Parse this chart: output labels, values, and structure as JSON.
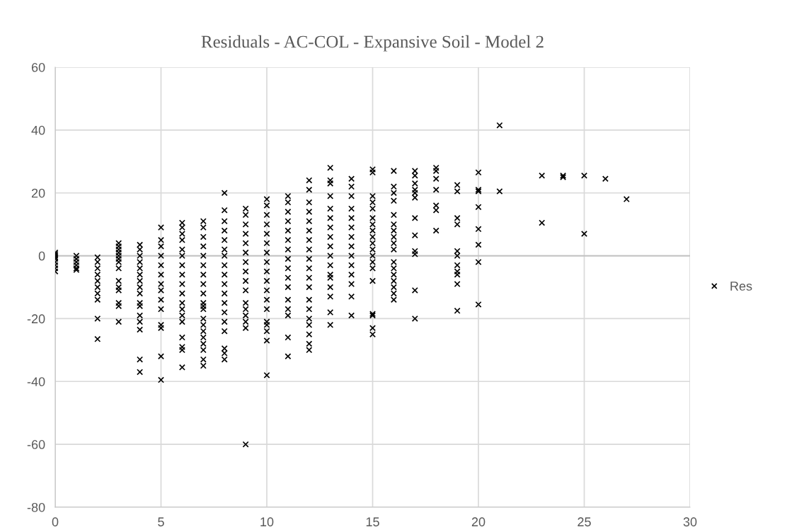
{
  "chart_data": {
    "type": "scatter",
    "title": "Residuals - AC-COL - Expansive Soil - Model 2",
    "xlim": [
      0,
      30
    ],
    "xticks": [
      0,
      5,
      10,
      15,
      20,
      25,
      30
    ],
    "ylim": [
      -80,
      60
    ],
    "yticks": [
      -80,
      -60,
      -40,
      -20,
      0,
      20,
      40,
      60
    ],
    "grid": true,
    "legend": "right",
    "marker": "cross",
    "series": [
      {
        "name": "Res",
        "color": "#000000",
        "x": [
          0,
          0,
          0,
          0,
          0,
          0,
          0,
          0,
          0,
          1,
          1,
          1,
          1,
          1,
          1,
          2,
          2,
          2,
          2,
          2,
          2,
          2,
          2,
          2,
          2,
          3,
          3,
          3,
          3,
          3,
          3,
          3,
          3,
          3,
          3,
          3,
          3,
          3,
          3,
          4,
          4,
          4,
          4,
          4,
          4,
          4,
          4,
          4,
          4,
          4,
          4,
          4,
          4,
          4,
          4,
          5,
          5,
          5,
          5,
          5,
          5,
          5,
          5,
          5,
          5,
          5,
          5,
          5,
          5,
          6,
          6,
          6,
          6,
          6,
          6,
          6,
          6,
          6,
          6,
          6,
          6,
          6,
          6,
          6,
          6,
          6,
          6,
          7,
          7,
          7,
          7,
          7,
          7,
          7,
          7,
          7,
          7,
          7,
          7,
          7,
          7,
          7,
          7,
          7,
          7,
          7,
          7,
          8,
          8,
          8,
          8,
          8,
          8,
          8,
          8,
          8,
          8,
          8,
          8,
          8,
          8,
          8,
          8,
          8,
          8,
          9,
          9,
          9,
          9,
          9,
          9,
          9,
          9,
          9,
          9,
          9,
          9,
          9,
          9,
          9,
          9,
          10,
          10,
          10,
          10,
          10,
          10,
          10,
          10,
          10,
          10,
          10,
          10,
          10,
          10,
          10,
          10,
          10,
          10,
          11,
          11,
          11,
          11,
          11,
          11,
          11,
          11,
          11,
          11,
          11,
          11,
          11,
          11,
          11,
          11,
          12,
          12,
          12,
          12,
          12,
          12,
          12,
          12,
          12,
          12,
          12,
          12,
          12,
          12,
          12,
          12,
          12,
          12,
          12,
          13,
          13,
          13,
          13,
          13,
          13,
          13,
          13,
          13,
          13,
          13,
          13,
          13,
          13,
          13,
          13,
          13,
          14,
          14,
          14,
          14,
          14,
          14,
          14,
          14,
          14,
          14,
          14,
          14,
          14,
          14,
          15,
          15,
          15,
          15,
          15,
          15,
          15,
          15,
          15,
          15,
          15,
          15,
          15,
          15,
          15,
          15,
          15,
          15,
          15,
          16,
          16,
          16,
          16,
          16,
          16,
          16,
          16,
          16,
          16,
          16,
          16,
          16,
          16,
          16,
          16,
          16,
          17,
          17,
          17,
          17,
          17,
          17,
          17,
          17,
          17,
          17,
          17,
          17,
          18,
          18,
          18,
          18,
          18,
          18,
          18,
          19,
          19,
          19,
          19,
          19,
          19,
          19,
          19,
          19,
          19,
          19,
          20,
          20,
          20,
          20,
          20,
          20,
          20,
          20,
          21,
          21,
          23,
          23,
          24,
          24,
          25,
          25,
          26,
          27
        ],
        "values": [
          1,
          0.5,
          0,
          -0.5,
          -1,
          -2,
          -3,
          -4,
          -5,
          0,
          -1,
          -2,
          -3,
          -4,
          -4.5,
          -0.5,
          -2,
          -4,
          -6,
          -8,
          -10,
          -12,
          -14,
          -20,
          -26.5,
          4,
          3,
          2,
          1,
          0,
          -1,
          -2,
          -4,
          -8,
          -10,
          -11,
          -15,
          -16,
          -21,
          3.5,
          2,
          0,
          -2,
          -4,
          -6,
          -8,
          -10,
          -12,
          -15,
          -16,
          -19,
          -21,
          -23.5,
          -33,
          -37,
          9,
          5,
          3,
          0,
          -3,
          -6,
          -9,
          -11,
          -14,
          -17,
          -22,
          -23,
          -32,
          -39.5,
          10.5,
          9,
          7,
          5,
          2,
          0,
          -3,
          -6,
          -9,
          -12,
          -15,
          -17,
          -19,
          -21,
          -26,
          -29,
          -30,
          -35.5,
          11,
          9,
          6,
          3,
          0,
          -3,
          -6,
          -9,
          -12,
          -15,
          -16,
          -17,
          -20,
          -22,
          -24,
          -26,
          -28,
          -30,
          -33,
          -35,
          20,
          14.5,
          11,
          8,
          5,
          2,
          0,
          -3,
          -6,
          -9,
          -12,
          -15,
          -18,
          -21,
          -24,
          -29.5,
          -31,
          -33,
          15,
          13,
          10,
          7,
          4,
          1,
          -2,
          -5,
          -8,
          -11,
          -15,
          -17,
          -19,
          -21,
          -23,
          -60,
          18,
          16,
          13,
          10,
          7,
          4,
          1,
          -2,
          -5,
          -8,
          -11,
          -14,
          -17,
          -21,
          -22,
          -24,
          -27,
          -38,
          19,
          17,
          14,
          11,
          8,
          5,
          2,
          -1,
          -4,
          -7,
          -10,
          -14,
          -17,
          -19,
          -26,
          -32,
          24,
          21,
          17,
          14,
          11,
          8,
          5,
          2,
          -1,
          -4,
          -7,
          -10,
          -14,
          -17,
          -20,
          -22,
          -25,
          -28,
          -30,
          28,
          24,
          23,
          19,
          15,
          12,
          9,
          6,
          3,
          0,
          -3,
          -6,
          -7,
          -10,
          -13,
          -18,
          -22,
          24.5,
          22,
          19,
          15,
          12,
          9,
          6,
          3,
          0,
          -3,
          -6,
          -9,
          -13,
          -19,
          27.5,
          26.5,
          19,
          17,
          15,
          12,
          10,
          8,
          6,
          4,
          2,
          0,
          -2,
          -4,
          -8,
          -18.5,
          -19,
          -23,
          -25,
          27,
          22,
          20,
          17.5,
          13,
          10,
          8,
          6,
          4,
          2,
          -2,
          -4,
          -6,
          -8,
          -10,
          -12,
          -14,
          27,
          25.5,
          23,
          21,
          20,
          18.5,
          12,
          6.5,
          1.5,
          0.5,
          -11,
          -20,
          28,
          27,
          24.5,
          21,
          16,
          14.5,
          8,
          22.5,
          20.5,
          12,
          10,
          1.5,
          0,
          -3,
          -5,
          -6,
          -9,
          -17.5,
          26.5,
          21,
          20.5,
          15.5,
          8.5,
          3.5,
          -2,
          -15.5,
          41.5,
          20.5,
          25.5,
          10.5,
          25.5,
          25,
          25.5,
          7,
          24.5,
          18
        ]
      }
    ]
  }
}
